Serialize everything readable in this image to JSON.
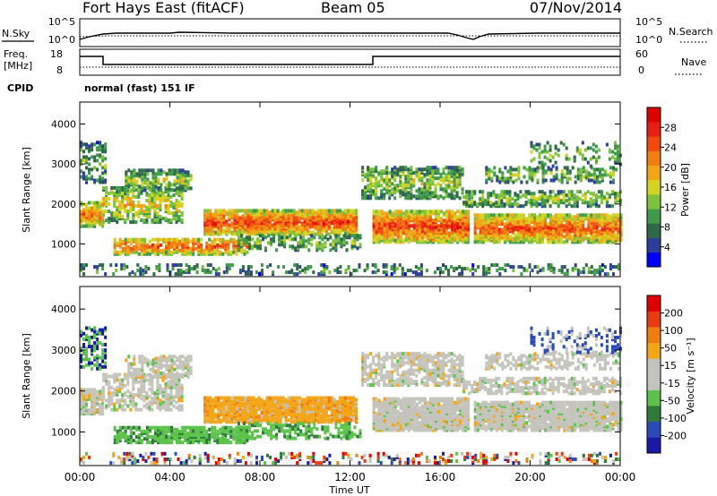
{
  "header": {
    "station": "Fort Hays East (fitACF)",
    "beam": "Beam 05",
    "date": "07/Nov/2014"
  },
  "top_panels": {
    "nsky_label": "N.Sky",
    "nsky_ticks": [
      "10^5",
      "10^0"
    ],
    "nsearch_label": "N.Search",
    "nsearch_ticks": [
      "10^5",
      "10^0"
    ],
    "freq_label_line1": "Freq.",
    "freq_label_line2": "[MHz]",
    "freq_ticks": [
      "18",
      "8"
    ],
    "nave_label": "Nave",
    "nave_ticks": [
      "60",
      "0"
    ],
    "cpid_label": "CPID",
    "cpid_text": "normal (fast) 151 IF"
  },
  "chart_data": [
    {
      "type": "heatmap",
      "name": "Power",
      "ylabel": "Slant Range [km]",
      "yticks": [
        "4000",
        "3000",
        "2000",
        "1000"
      ],
      "ylim": [
        180,
        4550
      ],
      "xlim_hours": [
        0,
        24
      ],
      "colorbar": {
        "title": "Power [dB]",
        "ticks": [
          "28",
          "24",
          "20",
          "16",
          "12",
          "8",
          "4"
        ],
        "colors": [
          "#0000ff",
          "#2d3d9b",
          "#2e6a47",
          "#3d9b4a",
          "#7dc23a",
          "#d3d321",
          "#f2a516",
          "#f07d0f",
          "#f04a0f",
          "#ea1e10",
          "#e00000"
        ]
      }
    },
    {
      "type": "heatmap",
      "name": "Velocity",
      "ylabel": "Slant Range [km]",
      "yticks": [
        "4000",
        "3000",
        "2000",
        "1000"
      ],
      "ylim": [
        180,
        4550
      ],
      "xlim_hours": [
        0,
        24
      ],
      "colorbar": {
        "title": "Velocity [m s⁻¹]",
        "ticks": [
          "200",
          "100",
          "50",
          "15",
          "-15",
          "-50",
          "-100",
          "-200"
        ],
        "colors": [
          "#1a1aa8",
          "#2a4ab8",
          "#2f7a3a",
          "#5bc34a",
          "#c4c4bc",
          "#c4c4bc",
          "#f2a516",
          "#f07d0f",
          "#ea3a10",
          "#e00000"
        ]
      }
    }
  ],
  "time_axis": {
    "label": "Time UT",
    "ticks": [
      "00:00",
      "04:00",
      "08:00",
      "12:00",
      "16:00",
      "20:00",
      "00:00"
    ]
  }
}
